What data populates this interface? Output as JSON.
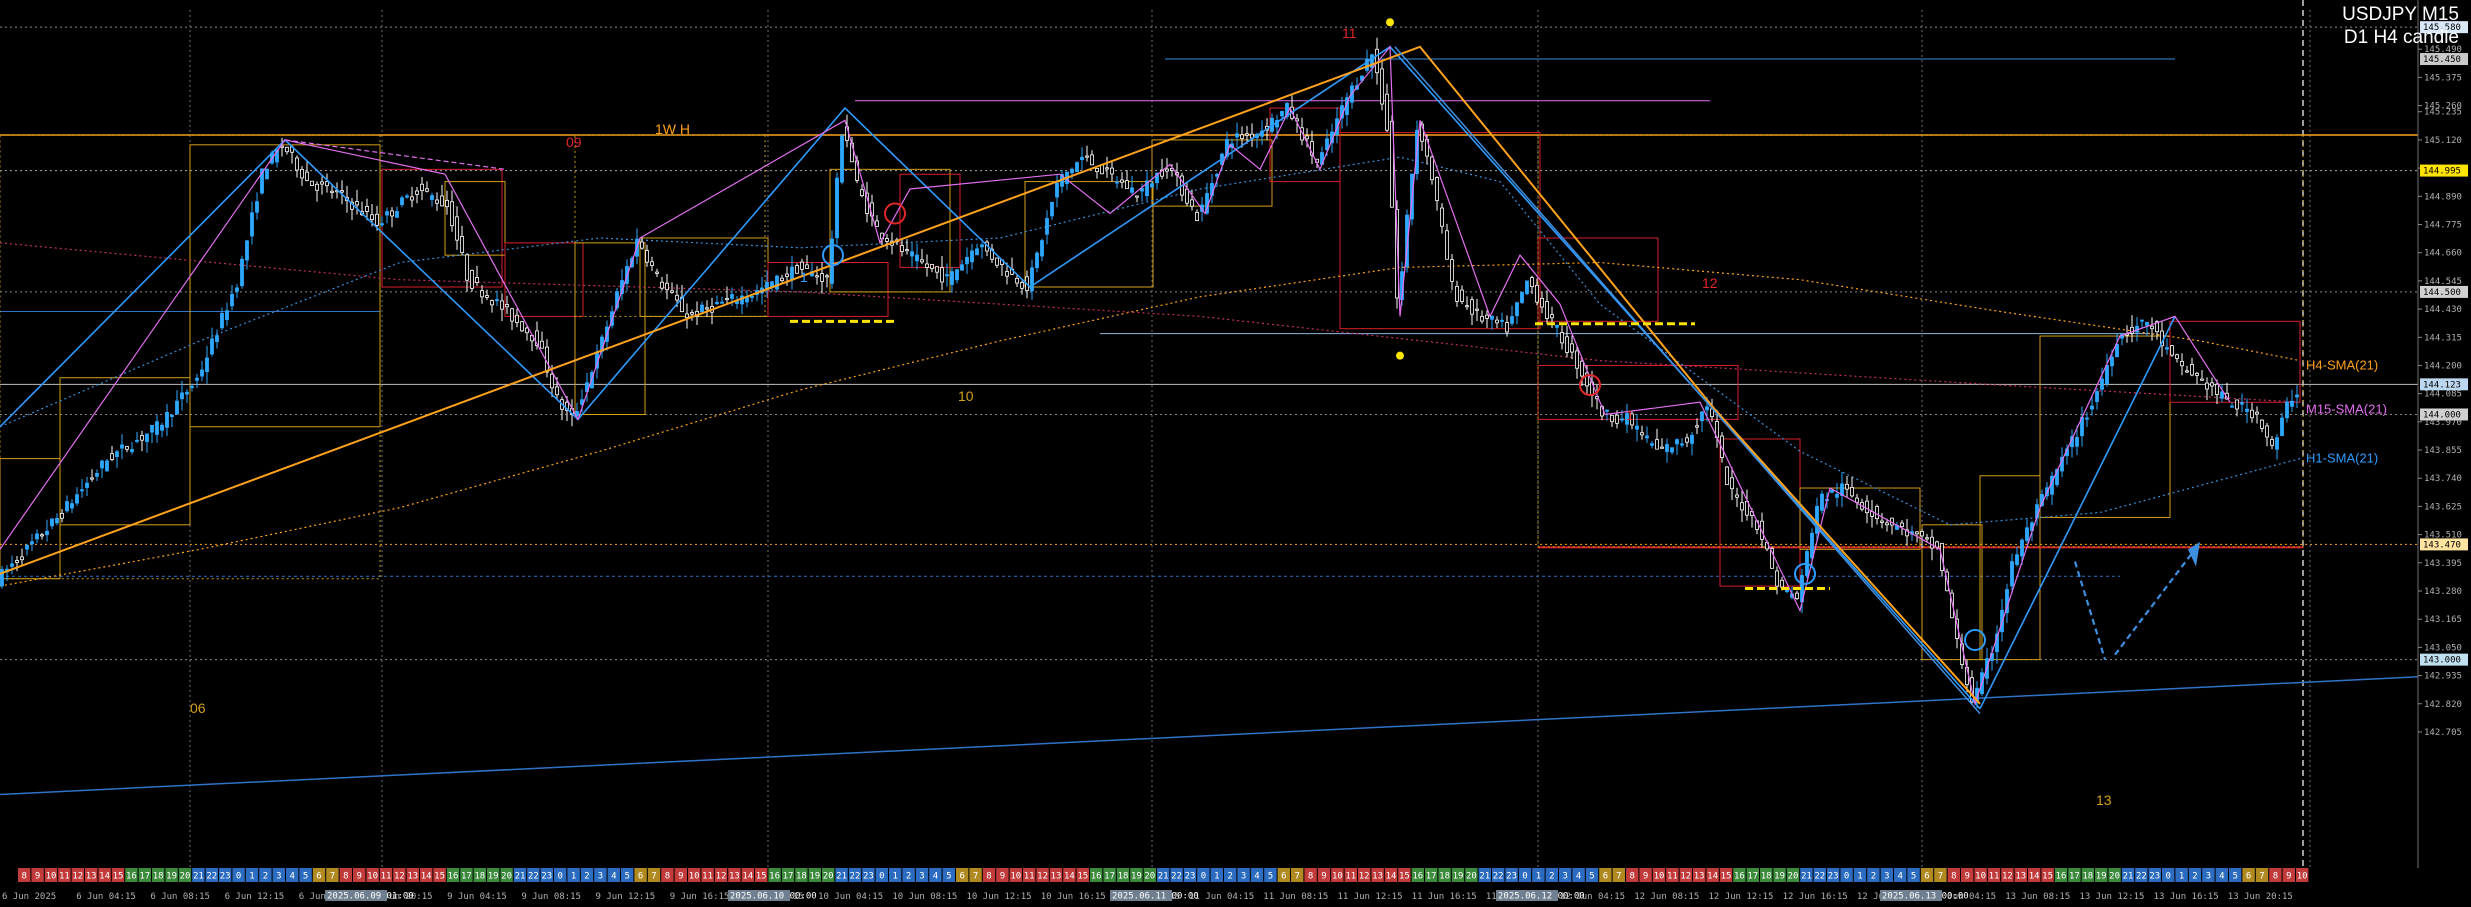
{
  "window": {
    "symbol_tf": "USDJPY M15",
    "subtitle": "D1 H4 candle"
  },
  "colors": {
    "background": "#000000",
    "bull": "#2ea8ff",
    "bear": "#ffffff",
    "zigzag_big": "#2f9bff",
    "zigzag_small": "#e36ff0",
    "trend_orange": "#ffa21c",
    "red_box": "#d81f2a",
    "yellow_box": "#d4a017",
    "grid": "#6f6f6f"
  },
  "chart_data": {
    "type": "candlestick",
    "symbol": "USDJPY",
    "timeframe": "M15",
    "ylim": [
      142.15,
      145.65
    ],
    "y_ticks": [
      {
        "value": 145.49,
        "label": "145.490"
      },
      {
        "value": 145.375,
        "label": "145.375"
      },
      {
        "value": 145.26,
        "label": "145.260"
      },
      {
        "value": 145.235,
        "label": "145.235"
      },
      {
        "value": 145.12,
        "label": "145.120"
      },
      {
        "value": 145.005,
        "label": "145.005"
      },
      {
        "value": 144.89,
        "label": "144.890"
      },
      {
        "value": 144.775,
        "label": "144.775"
      },
      {
        "value": 144.66,
        "label": "144.660"
      },
      {
        "value": 144.545,
        "label": "144.545"
      },
      {
        "value": 144.43,
        "label": "144.430"
      },
      {
        "value": 144.315,
        "label": "144.315"
      },
      {
        "value": 144.2,
        "label": "144.200"
      },
      {
        "value": 144.085,
        "label": "144.085"
      },
      {
        "value": 143.97,
        "label": "143.970"
      },
      {
        "value": 143.855,
        "label": "143.855"
      },
      {
        "value": 143.74,
        "label": "143.740"
      },
      {
        "value": 143.625,
        "label": "143.625"
      },
      {
        "value": 143.51,
        "label": "143.510"
      },
      {
        "value": 143.395,
        "label": "143.395"
      },
      {
        "value": 143.28,
        "label": "143.280"
      },
      {
        "value": 143.165,
        "label": "143.165"
      },
      {
        "value": 143.05,
        "label": "143.050"
      },
      {
        "value": 142.935,
        "label": "142.935"
      },
      {
        "value": 142.82,
        "label": "142.820"
      },
      {
        "value": 142.705,
        "label": "142.705"
      }
    ],
    "highlighted_prices": [
      {
        "value": 145.58,
        "label": "145.580",
        "bg": "#d8e8f8",
        "fg": "#000000"
      },
      {
        "value": 145.45,
        "label": "145.450",
        "bg": "#c9c9c9",
        "fg": "#000000"
      },
      {
        "value": 144.995,
        "label": "144.995",
        "bg": "#ffe400",
        "fg": "#000000"
      },
      {
        "value": 144.5,
        "label": "144.500",
        "bg": "#d0d0d0",
        "fg": "#000000"
      },
      {
        "value": 144.123,
        "label": "144.123",
        "bg": "#bcd8f0",
        "fg": "#000000"
      },
      {
        "value": 144.0,
        "label": "144.000",
        "bg": "#d0d0d0",
        "fg": "#000000"
      },
      {
        "value": 143.47,
        "label": "143.470",
        "bg": "#ffe4a0",
        "fg": "#000000"
      },
      {
        "value": 143.0,
        "label": "143.000",
        "bg": "#c0e0f0",
        "fg": "#000000"
      }
    ],
    "x_time_labels": [
      "6 Jun 2025",
      "6 Jun 04:15",
      "6 Jun 08:15",
      "6 Jun 12:15",
      "6 Jun 16:15",
      "6 Jun 20:15",
      "9 Jun 04:15",
      "9 Jun 08:15",
      "9 Jun 12:15",
      "9 Jun 16:15",
      "9 Jun 20:15",
      "10 Jun 04:15",
      "10 Jun 08:15",
      "10 Jun 12:15",
      "10 Jun 16:15",
      "10 Jun 20:15",
      "11 Jun 04:15",
      "11 Jun 08:15",
      "11 Jun 12:15",
      "11 Jun 16:15",
      "11 Jun 20:15",
      "12 Jun 04:15",
      "12 Jun 08:15",
      "12 Jun 12:15",
      "12 Jun 16:15",
      "12 Jun 20:15",
      "13 Jun 04:15",
      "13 Jun 08:15",
      "13 Jun 12:15",
      "13 Jun 16:15",
      "13 Jun 20:15"
    ],
    "date_tags": [
      "2025.06.09 01:00",
      "2025.06.10 00:00",
      "2025.06.11 00:00",
      "2025.06.12 00:00",
      "2025.06.13 00:00"
    ],
    "hour_strip": [
      "8",
      "9",
      "10",
      "11",
      "12",
      "13",
      "14",
      "15",
      "16",
      "17",
      "18",
      "19",
      "20",
      "21",
      "22",
      "23",
      "0",
      "1",
      "2",
      "3",
      "4",
      "5",
      "6",
      "7"
    ],
    "indicator_labels": [
      {
        "text": "H4-SMA(21)",
        "color": "#ffa21c"
      },
      {
        "text": "M15-SMA(21)",
        "color": "#e36ff0"
      },
      {
        "text": "H1-SMA(21)",
        "color": "#2f9bff"
      }
    ],
    "annotations": [
      {
        "text": "11",
        "color": "#e02828"
      },
      {
        "text": "09",
        "color": "#e02828"
      },
      {
        "text": "1W H",
        "color": "#ffa21c"
      },
      {
        "text": "12",
        "color": "#e02828"
      },
      {
        "text": "10",
        "color": "#d4a017"
      },
      {
        "text": "06",
        "color": "#d4a017"
      },
      {
        "text": "13",
        "color": "#d4a017"
      },
      {
        "text": "1",
        "color": "#2f9bff"
      },
      {
        "text": "1",
        "color": "#e02828"
      }
    ],
    "price_path": [
      [
        0,
        143.33
      ],
      [
        60,
        143.58
      ],
      [
        110,
        143.82
      ],
      [
        160,
        143.95
      ],
      [
        200,
        144.15
      ],
      [
        240,
        144.55
      ],
      [
        265,
        145.0
      ],
      [
        285,
        145.1
      ],
      [
        310,
        144.95
      ],
      [
        340,
        144.9
      ],
      [
        380,
        144.78
      ],
      [
        420,
        144.92
      ],
      [
        450,
        144.85
      ],
      [
        470,
        144.55
      ],
      [
        500,
        144.45
      ],
      [
        540,
        144.3
      ],
      [
        560,
        144.05
      ],
      [
        575,
        143.98
      ],
      [
        600,
        144.25
      ],
      [
        620,
        144.5
      ],
      [
        640,
        144.72
      ],
      [
        660,
        144.55
      ],
      [
        690,
        144.4
      ],
      [
        720,
        144.45
      ],
      [
        760,
        144.5
      ],
      [
        800,
        144.6
      ],
      [
        830,
        144.55
      ],
      [
        845,
        145.2
      ],
      [
        860,
        144.92
      ],
      [
        880,
        144.75
      ],
      [
        910,
        144.65
      ],
      [
        950,
        144.55
      ],
      [
        980,
        144.7
      ],
      [
        1010,
        144.58
      ],
      [
        1030,
        144.52
      ],
      [
        1060,
        144.95
      ],
      [
        1085,
        145.05
      ],
      [
        1110,
        144.98
      ],
      [
        1140,
        144.9
      ],
      [
        1170,
        145.02
      ],
      [
        1200,
        144.8
      ],
      [
        1230,
        145.12
      ],
      [
        1260,
        145.15
      ],
      [
        1290,
        145.25
      ],
      [
        1320,
        145.02
      ],
      [
        1350,
        145.3
      ],
      [
        1375,
        145.48
      ],
      [
        1390,
        145.15
      ],
      [
        1400,
        144.4
      ],
      [
        1410,
        144.85
      ],
      [
        1420,
        145.2
      ],
      [
        1435,
        144.95
      ],
      [
        1455,
        144.5
      ],
      [
        1480,
        144.4
      ],
      [
        1510,
        144.35
      ],
      [
        1530,
        144.55
      ],
      [
        1550,
        144.4
      ],
      [
        1580,
        144.2
      ],
      [
        1605,
        144.0
      ],
      [
        1630,
        143.98
      ],
      [
        1660,
        143.85
      ],
      [
        1690,
        143.9
      ],
      [
        1710,
        144.05
      ],
      [
        1730,
        143.7
      ],
      [
        1760,
        143.55
      ],
      [
        1780,
        143.3
      ],
      [
        1800,
        143.25
      ],
      [
        1820,
        143.65
      ],
      [
        1845,
        143.7
      ],
      [
        1880,
        143.58
      ],
      [
        1910,
        143.52
      ],
      [
        1940,
        143.45
      ],
      [
        1960,
        143.05
      ],
      [
        1975,
        142.82
      ],
      [
        1995,
        143.05
      ],
      [
        2015,
        143.4
      ],
      [
        2040,
        143.62
      ],
      [
        2065,
        143.82
      ],
      [
        2095,
        144.05
      ],
      [
        2120,
        144.32
      ],
      [
        2150,
        144.38
      ],
      [
        2175,
        144.22
      ],
      [
        2200,
        144.15
      ],
      [
        2230,
        144.05
      ],
      [
        2260,
        144.0
      ],
      [
        2275,
        143.85
      ],
      [
        2290,
        144.05
      ],
      [
        2300,
        144.1
      ]
    ]
  }
}
